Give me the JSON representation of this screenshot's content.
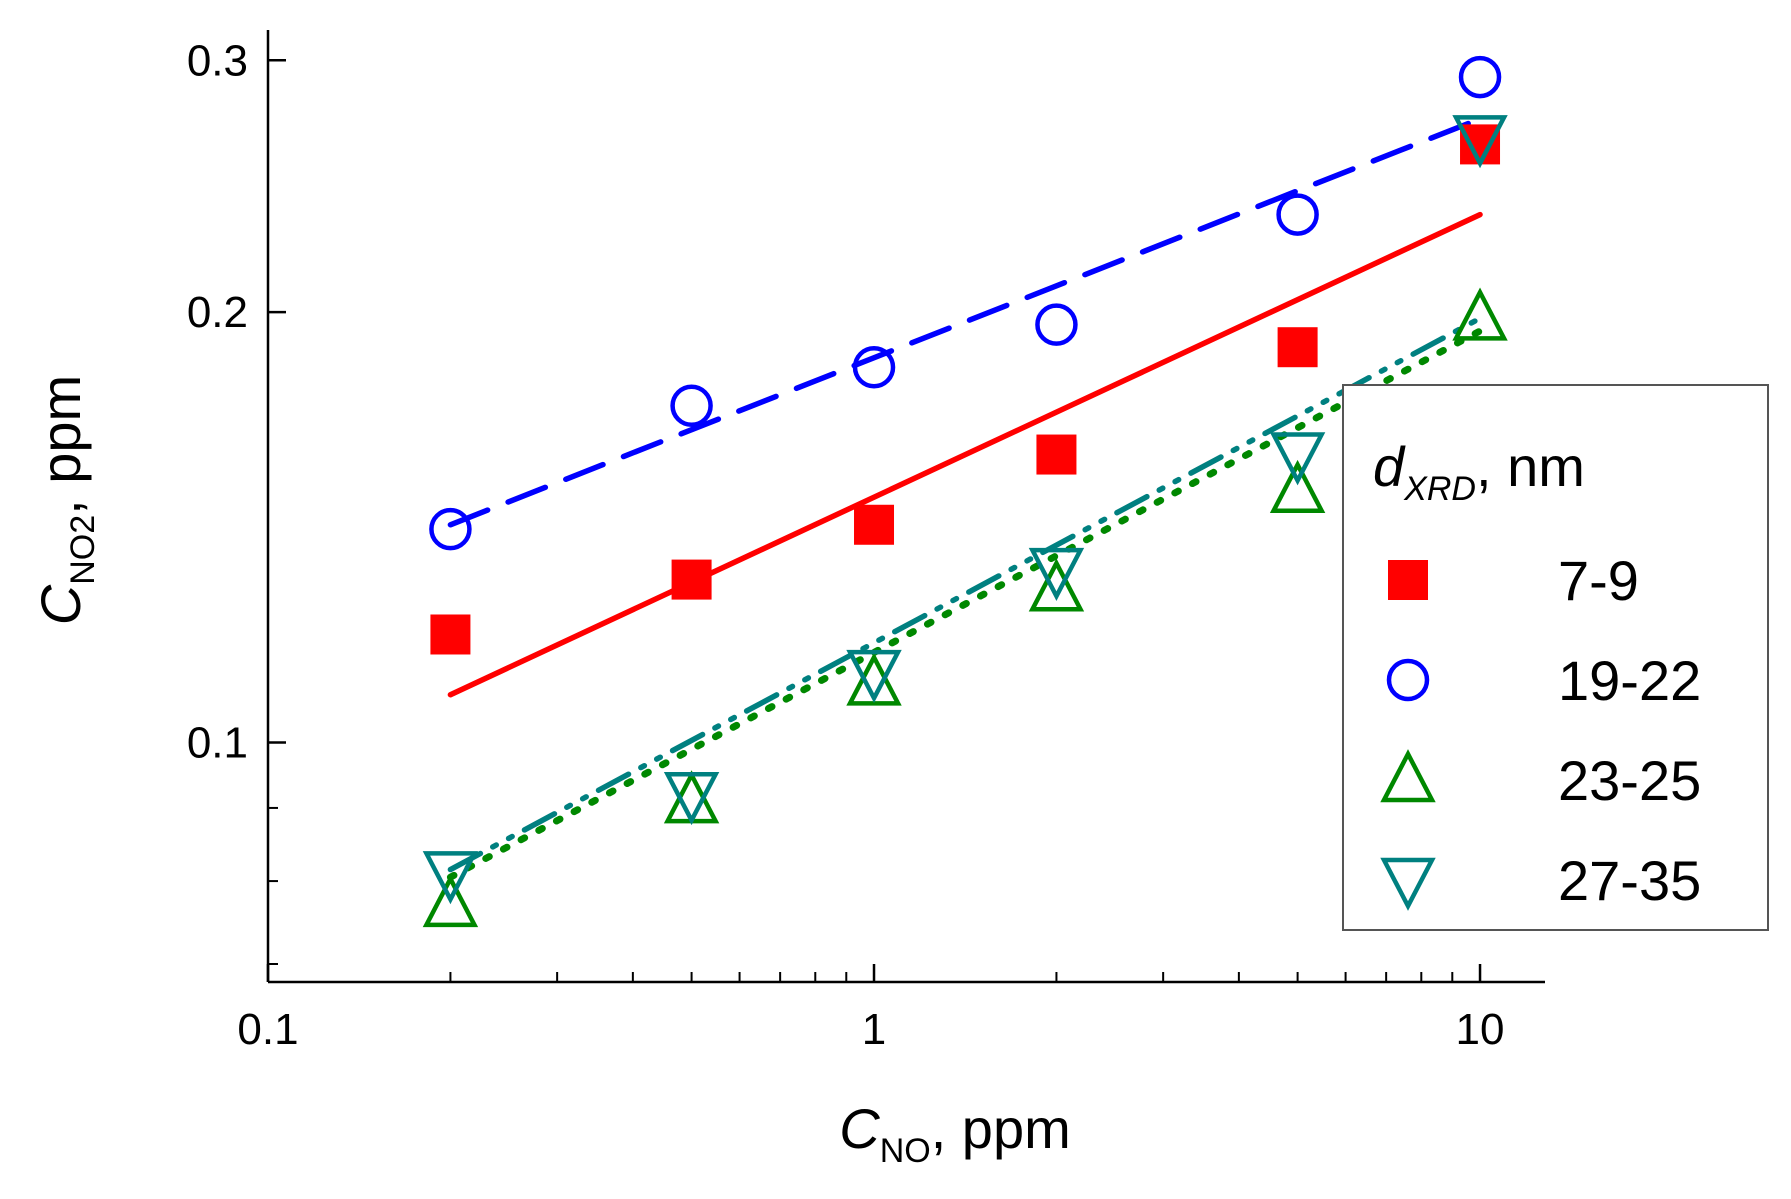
{
  "chart_data": {
    "type": "scatter",
    "x_scale": "log",
    "y_scale": "log",
    "xlim": [
      0.1,
      12.8
    ],
    "ylim": [
      0.068,
      0.315
    ],
    "x_ticks": [
      0.1,
      1,
      10
    ],
    "x_tick_labels": [
      "0.1",
      "1",
      "10"
    ],
    "y_ticks": [
      0.1,
      0.2,
      0.3
    ],
    "y_tick_labels": [
      "0.1",
      "0.2",
      "0.3"
    ],
    "xlabel": {
      "main": "C",
      "sub": "NO",
      "suffix": ", ppm"
    },
    "ylabel": {
      "main": "C",
      "sub": "NO2",
      "suffix": ", ppm"
    },
    "legend": {
      "title_main": "d",
      "title_sub": "XRD",
      "title_suffix": ", nm",
      "position": "right"
    },
    "x": [
      0.2,
      0.5,
      1,
      2,
      5,
      10
    ],
    "series": [
      {
        "name": "7-9",
        "marker": "square-filled",
        "color": "#ff0000",
        "line_style": "solid",
        "values": [
          0.119,
          0.13,
          0.142,
          0.159,
          0.189,
          0.262
        ],
        "fit": [
          0.108,
          0.234
        ]
      },
      {
        "name": "19-22",
        "marker": "circle-open",
        "color": "#0000ff",
        "line_style": "dash",
        "values": [
          0.141,
          0.172,
          0.183,
          0.196,
          0.234,
          0.292
        ],
        "fit": [
          0.142,
          0.273
        ]
      },
      {
        "name": "23-25",
        "marker": "triangle-up-open",
        "color": "#008800",
        "line_style": "dot",
        "values": [
          0.077,
          0.091,
          0.11,
          0.128,
          0.15,
          0.198
        ],
        "fit": [
          0.0805,
          0.194
        ]
      },
      {
        "name": "27-35",
        "marker": "triangle-down-open",
        "color": "#008080",
        "line_style": "dash-dot-dot",
        "values": [
          0.081,
          0.092,
          0.112,
          0.132,
          0.159,
          0.265
        ],
        "fit": [
          0.0815,
          0.198
        ]
      }
    ]
  }
}
